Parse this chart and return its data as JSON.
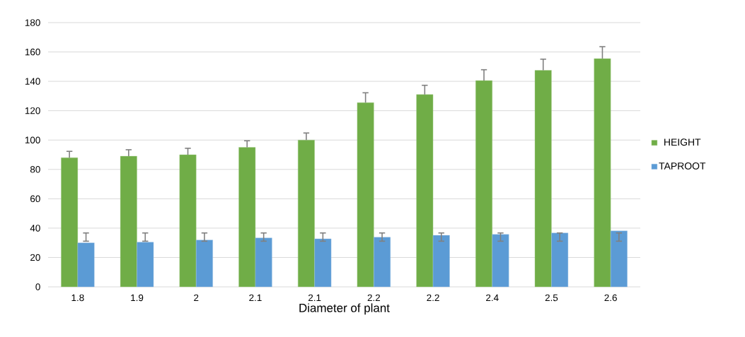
{
  "chart_data": {
    "type": "bar",
    "xlabel": "Diameter of plant",
    "categories": [
      "1.8",
      "1.9",
      "2",
      "2.1",
      "2.1",
      "2.2",
      "2.2",
      "2.4",
      "2.5",
      "2.6"
    ],
    "series": [
      {
        "name": "HEIGHT",
        "color": "#70ad47",
        "values": [
          88,
          89,
          90,
          95,
          100,
          125.5,
          131,
          140.5,
          147.5,
          155.5
        ],
        "errors": [
          [
            88,
            92.3
          ],
          [
            89,
            93.4
          ],
          [
            90,
            94.4
          ],
          [
            95,
            99.5
          ],
          [
            100,
            104.8
          ],
          [
            125.5,
            132.2
          ],
          [
            131,
            137.3
          ],
          [
            140.5,
            147.9
          ],
          [
            147.5,
            155.1
          ],
          [
            155.5,
            163.6
          ]
        ]
      },
      {
        "name": "TAPROOT",
        "color": "#5b9bd5",
        "values": [
          30,
          30.4,
          31.9,
          33.3,
          32.7,
          33.8,
          35.1,
          35.7,
          36.7,
          38.1
        ],
        "errors": [
          [
            31.1,
            36.7
          ],
          [
            31.1,
            36.7
          ],
          [
            31.1,
            36.7
          ],
          [
            31.1,
            36.7
          ],
          [
            31.1,
            36.7
          ],
          [
            31.1,
            36.7
          ],
          [
            31.1,
            36.7
          ],
          [
            31.1,
            36.7
          ],
          [
            31.1,
            36.7
          ],
          [
            31.1,
            36.7
          ]
        ]
      }
    ],
    "ylim": [
      0,
      180
    ],
    "yticks": [
      0,
      20,
      40,
      60,
      80,
      100,
      120,
      140,
      160,
      180
    ],
    "grid": "y",
    "legend": "right"
  }
}
